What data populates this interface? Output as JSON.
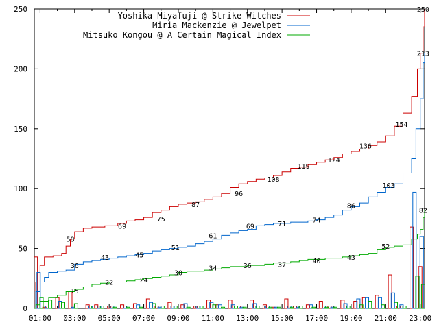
{
  "chart_data": {
    "type": "line",
    "title": "",
    "xlabel": "",
    "ylabel": "",
    "ylim": [
      0,
      250
    ],
    "xlim": [
      "00:40",
      "23:15"
    ],
    "grid": false,
    "legend_placement": "top-right",
    "yticks": [
      0,
      50,
      100,
      150,
      200,
      250
    ],
    "xticks": [
      "01:00",
      "03:00",
      "05:00",
      "07:00",
      "09:00",
      "11:00",
      "13:00",
      "15:00",
      "17:00",
      "19:00",
      "21:00",
      "23:00"
    ],
    "series": [
      {
        "name": "Yoshika Miyafuji @ Strike Witches",
        "color": "#cc0000",
        "points": [
          [
            "00:40",
            0
          ],
          [
            "00:45",
            22
          ],
          [
            "01:00",
            36
          ],
          [
            "01:15",
            43
          ],
          [
            "01:45",
            44
          ],
          [
            "02:15",
            46
          ],
          [
            "02:30",
            52
          ],
          [
            "02:45",
            58
          ],
          [
            "03:00",
            64
          ],
          [
            "03:30",
            67
          ],
          [
            "04:00",
            68
          ],
          [
            "04:45",
            69
          ],
          [
            "05:30",
            71
          ],
          [
            "06:00",
            73
          ],
          [
            "06:30",
            74
          ],
          [
            "07:00",
            76
          ],
          [
            "07:30",
            80
          ],
          [
            "08:00",
            82
          ],
          [
            "08:30",
            85
          ],
          [
            "09:00",
            87
          ],
          [
            "09:30",
            88
          ],
          [
            "10:00",
            89
          ],
          [
            "10:30",
            91
          ],
          [
            "11:00",
            93
          ],
          [
            "11:30",
            96
          ],
          [
            "12:00",
            101
          ],
          [
            "12:30",
            104
          ],
          [
            "13:00",
            106
          ],
          [
            "13:30",
            108
          ],
          [
            "14:00",
            109
          ],
          [
            "14:30",
            111
          ],
          [
            "15:00",
            114
          ],
          [
            "15:30",
            117
          ],
          [
            "16:00",
            118
          ],
          [
            "16:30",
            120
          ],
          [
            "17:00",
            122
          ],
          [
            "17:30",
            124
          ],
          [
            "18:00",
            126
          ],
          [
            "18:30",
            129
          ],
          [
            "19:00",
            131
          ],
          [
            "19:30",
            133
          ],
          [
            "20:00",
            136
          ],
          [
            "20:30",
            139
          ],
          [
            "21:00",
            144
          ],
          [
            "21:30",
            152
          ],
          [
            "22:00",
            163
          ],
          [
            "22:30",
            177
          ],
          [
            "22:50",
            200
          ],
          [
            "23:00",
            213
          ],
          [
            "23:10",
            235
          ],
          [
            "23:15",
            250
          ]
        ],
        "labels": [
          [
            "02:45",
            58,
            "58"
          ],
          [
            "05:45",
            69,
            "69"
          ],
          [
            "08:00",
            75,
            "75"
          ],
          [
            "10:00",
            87,
            "87"
          ],
          [
            "12:30",
            96,
            "96"
          ],
          [
            "14:30",
            108,
            "108"
          ],
          [
            "16:15",
            119,
            "119"
          ],
          [
            "18:00",
            124,
            "124"
          ],
          [
            "19:50",
            136,
            "136"
          ],
          [
            "21:55",
            154,
            "154"
          ],
          [
            "23:10",
            250,
            "250"
          ]
        ]
      },
      {
        "name": "Miria Mackenzie @ Jewelpet",
        "color": "#0066cc",
        "points": [
          [
            "00:40",
            0
          ],
          [
            "00:45",
            14
          ],
          [
            "01:00",
            22
          ],
          [
            "01:15",
            26
          ],
          [
            "01:30",
            30
          ],
          [
            "02:00",
            31
          ],
          [
            "02:30",
            32
          ],
          [
            "03:00",
            37
          ],
          [
            "03:30",
            39
          ],
          [
            "04:00",
            40
          ],
          [
            "04:30",
            41
          ],
          [
            "05:00",
            42
          ],
          [
            "05:30",
            43
          ],
          [
            "06:00",
            44
          ],
          [
            "06:30",
            45
          ],
          [
            "07:00",
            46
          ],
          [
            "07:30",
            48
          ],
          [
            "08:00",
            49
          ],
          [
            "08:30",
            50
          ],
          [
            "09:00",
            51
          ],
          [
            "09:30",
            52
          ],
          [
            "10:00",
            54
          ],
          [
            "10:30",
            56
          ],
          [
            "11:00",
            58
          ],
          [
            "11:30",
            61
          ],
          [
            "12:00",
            63
          ],
          [
            "12:30",
            65
          ],
          [
            "13:00",
            66
          ],
          [
            "13:30",
            69
          ],
          [
            "14:00",
            70
          ],
          [
            "14:30",
            71
          ],
          [
            "15:00",
            71
          ],
          [
            "15:30",
            72
          ],
          [
            "16:00",
            72
          ],
          [
            "16:30",
            73
          ],
          [
            "17:00",
            74
          ],
          [
            "17:30",
            76
          ],
          [
            "18:00",
            78
          ],
          [
            "18:30",
            82
          ],
          [
            "19:00",
            85
          ],
          [
            "19:30",
            88
          ],
          [
            "20:00",
            93
          ],
          [
            "20:30",
            97
          ],
          [
            "21:00",
            101
          ],
          [
            "21:30",
            104
          ],
          [
            "22:00",
            113
          ],
          [
            "22:30",
            125
          ],
          [
            "22:45",
            150
          ],
          [
            "23:00",
            175
          ],
          [
            "23:10",
            205
          ],
          [
            "23:15",
            213
          ]
        ],
        "labels": [
          [
            "03:00",
            36,
            "36"
          ],
          [
            "04:45",
            43,
            "43"
          ],
          [
            "06:45",
            45,
            "45"
          ],
          [
            "08:50",
            51,
            "51"
          ],
          [
            "11:00",
            61,
            "61"
          ],
          [
            "13:10",
            69,
            "69"
          ],
          [
            "15:00",
            71,
            "71"
          ],
          [
            "17:00",
            74,
            "74"
          ],
          [
            "19:00",
            86,
            "86"
          ],
          [
            "21:10",
            103,
            "103"
          ],
          [
            "23:10",
            213,
            "213"
          ]
        ]
      },
      {
        "name": "Mitsuko Kongou @ A Certain Magical Index",
        "color": "#00aa00",
        "points": [
          [
            "00:40",
            0
          ],
          [
            "00:45",
            3
          ],
          [
            "01:00",
            6
          ],
          [
            "01:30",
            9
          ],
          [
            "02:00",
            11
          ],
          [
            "02:30",
            14
          ],
          [
            "03:00",
            16
          ],
          [
            "03:30",
            18
          ],
          [
            "04:00",
            20
          ],
          [
            "04:30",
            21
          ],
          [
            "05:00",
            22
          ],
          [
            "06:00",
            23
          ],
          [
            "06:30",
            24
          ],
          [
            "07:00",
            25
          ],
          [
            "07:30",
            26
          ],
          [
            "08:00",
            27
          ],
          [
            "08:30",
            28
          ],
          [
            "09:00",
            30
          ],
          [
            "09:30",
            31
          ],
          [
            "10:00",
            31
          ],
          [
            "10:30",
            32
          ],
          [
            "11:00",
            33
          ],
          [
            "11:30",
            34
          ],
          [
            "12:00",
            35
          ],
          [
            "12:30",
            35
          ],
          [
            "13:00",
            36
          ],
          [
            "13:30",
            36
          ],
          [
            "14:00",
            37
          ],
          [
            "14:30",
            38
          ],
          [
            "15:00",
            38
          ],
          [
            "15:30",
            39
          ],
          [
            "16:00",
            40
          ],
          [
            "16:30",
            41
          ],
          [
            "17:00",
            41
          ],
          [
            "17:30",
            42
          ],
          [
            "18:00",
            42
          ],
          [
            "18:30",
            43
          ],
          [
            "19:00",
            44
          ],
          [
            "19:30",
            45
          ],
          [
            "20:00",
            46
          ],
          [
            "20:30",
            49
          ],
          [
            "21:00",
            51
          ],
          [
            "21:30",
            52
          ],
          [
            "22:00",
            53
          ],
          [
            "22:30",
            58
          ],
          [
            "22:50",
            62
          ],
          [
            "23:00",
            66
          ],
          [
            "23:10",
            76
          ],
          [
            "23:15",
            82
          ]
        ],
        "labels": [
          [
            "03:00",
            15,
            "15"
          ],
          [
            "05:00",
            22,
            "22"
          ],
          [
            "07:00",
            24,
            "24"
          ],
          [
            "09:00",
            30,
            "30"
          ],
          [
            "11:00",
            34,
            "34"
          ],
          [
            "13:00",
            36,
            "36"
          ],
          [
            "15:00",
            37,
            "37"
          ],
          [
            "17:00",
            40,
            "40"
          ],
          [
            "19:00",
            43,
            "43"
          ],
          [
            "21:00",
            52,
            "52"
          ],
          [
            "23:10",
            82,
            "82"
          ]
        ]
      }
    ],
    "hourly_counts": [
      {
        "series": 0,
        "values": [
          [
            "00:45",
            43
          ],
          [
            "01:15",
            1
          ],
          [
            "02:00",
            9
          ],
          [
            "02:45",
            14
          ],
          [
            "03:45",
            3
          ],
          [
            "04:15",
            3
          ],
          [
            "05:00",
            2
          ],
          [
            "05:45",
            3
          ],
          [
            "06:30",
            4
          ],
          [
            "07:15",
            8
          ],
          [
            "07:45",
            2
          ],
          [
            "08:30",
            5
          ],
          [
            "09:15",
            3
          ],
          [
            "10:00",
            2
          ],
          [
            "10:45",
            7
          ],
          [
            "11:15",
            3
          ],
          [
            "12:00",
            7
          ],
          [
            "12:30",
            2
          ],
          [
            "13:15",
            7
          ],
          [
            "14:00",
            3
          ],
          [
            "14:30",
            1
          ],
          [
            "15:15",
            8
          ],
          [
            "15:45",
            2
          ],
          [
            "16:30",
            3
          ],
          [
            "17:15",
            6
          ],
          [
            "17:45",
            2
          ],
          [
            "18:30",
            7
          ],
          [
            "19:15",
            6
          ],
          [
            "19:45",
            9
          ],
          [
            "20:30",
            11
          ],
          [
            "21:15",
            28
          ],
          [
            "21:45",
            2
          ],
          [
            "22:30",
            68
          ],
          [
            "23:00",
            35
          ]
        ]
      },
      {
        "series": 1,
        "values": [
          [
            "00:55",
            30
          ],
          [
            "01:25",
            2
          ],
          [
            "02:10",
            6
          ],
          [
            "02:55",
            1
          ],
          [
            "03:55",
            2
          ],
          [
            "04:25",
            2
          ],
          [
            "05:10",
            2
          ],
          [
            "05:55",
            2
          ],
          [
            "06:40",
            3
          ],
          [
            "07:25",
            5
          ],
          [
            "07:55",
            1
          ],
          [
            "08:40",
            2
          ],
          [
            "09:25",
            4
          ],
          [
            "10:10",
            2
          ],
          [
            "10:55",
            5
          ],
          [
            "11:25",
            3
          ],
          [
            "12:10",
            3
          ],
          [
            "12:40",
            1
          ],
          [
            "13:25",
            4
          ],
          [
            "14:10",
            2
          ],
          [
            "14:40",
            1
          ],
          [
            "15:25",
            2
          ],
          [
            "15:55",
            1
          ],
          [
            "16:40",
            3
          ],
          [
            "17:25",
            2
          ],
          [
            "17:55",
            1
          ],
          [
            "18:40",
            4
          ],
          [
            "19:25",
            8
          ],
          [
            "19:55",
            9
          ],
          [
            "20:40",
            9
          ],
          [
            "21:25",
            13
          ],
          [
            "21:55",
            3
          ],
          [
            "22:40",
            97
          ],
          [
            "23:05",
            60
          ]
        ]
      },
      {
        "series": 2,
        "values": [
          [
            "01:05",
            9
          ],
          [
            "01:35",
            7
          ],
          [
            "02:20",
            5
          ],
          [
            "03:05",
            4
          ],
          [
            "04:05",
            2
          ],
          [
            "04:35",
            2
          ],
          [
            "05:20",
            1
          ],
          [
            "06:05",
            1
          ],
          [
            "06:50",
            1
          ],
          [
            "07:35",
            4
          ],
          [
            "08:05",
            2
          ],
          [
            "08:50",
            2
          ],
          [
            "09:35",
            1
          ],
          [
            "10:20",
            2
          ],
          [
            "11:05",
            3
          ],
          [
            "11:35",
            1
          ],
          [
            "12:20",
            2
          ],
          [
            "12:50",
            1
          ],
          [
            "13:35",
            2
          ],
          [
            "14:20",
            1
          ],
          [
            "14:50",
            1
          ],
          [
            "15:35",
            1
          ],
          [
            "16:05",
            2
          ],
          [
            "16:50",
            1
          ],
          [
            "17:35",
            1
          ],
          [
            "18:05",
            1
          ],
          [
            "18:50",
            2
          ],
          [
            "19:35",
            3
          ],
          [
            "20:05",
            6
          ],
          [
            "20:50",
            3
          ],
          [
            "21:35",
            5
          ],
          [
            "22:05",
            2
          ],
          [
            "22:50",
            27
          ],
          [
            "23:10",
            20
          ]
        ]
      }
    ]
  }
}
